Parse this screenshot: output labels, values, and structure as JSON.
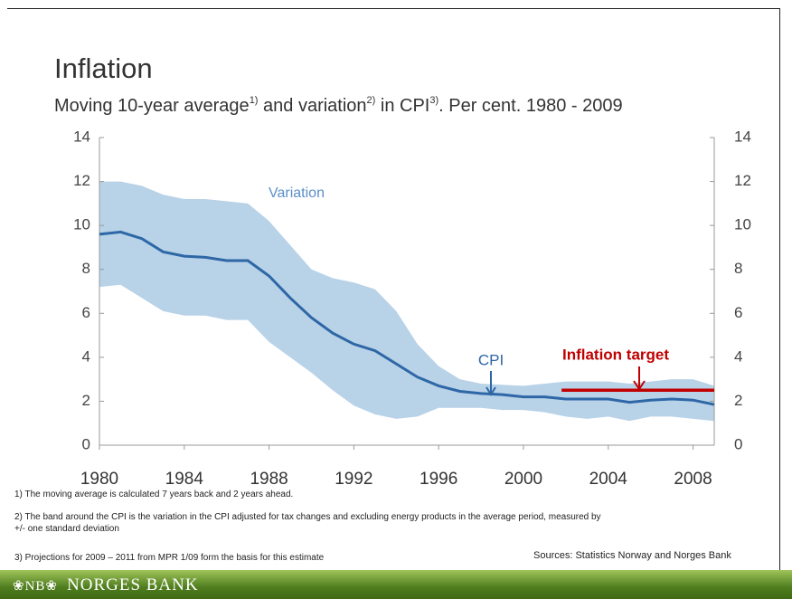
{
  "chart_data": {
    "type": "line",
    "title": "Inflation",
    "subtitle_parts": [
      "Moving 10-year average",
      "1)",
      " and variation",
      "2)",
      " in CPI",
      "3)",
      ". Per cent. 1980 - 2009"
    ],
    "x": [
      1980,
      1981,
      1982,
      1983,
      1984,
      1985,
      1986,
      1987,
      1988,
      1989,
      1990,
      1991,
      1992,
      1993,
      1994,
      1995,
      1996,
      1997,
      1998,
      1999,
      2000,
      2001,
      2002,
      2003,
      2004,
      2005,
      2006,
      2007,
      2008,
      2009
    ],
    "xlim": [
      1980,
      2009
    ],
    "xticks": [
      1980,
      1984,
      1988,
      1992,
      1996,
      2000,
      2004,
      2008
    ],
    "ylim": [
      0,
      14
    ],
    "yticks": [
      0,
      2,
      4,
      6,
      8,
      10,
      12,
      14
    ],
    "y2lim": [
      0,
      14
    ],
    "y2ticks": [
      0,
      2,
      4,
      6,
      8,
      10,
      12,
      14
    ],
    "band": {
      "name": "Variation",
      "color": "#b8d2e8",
      "label_color": "#5b8fc8",
      "upper": [
        12,
        12,
        11.8,
        11.4,
        11.2,
        11.2,
        11.1,
        11,
        10.2,
        9.1,
        8,
        7.6,
        7.4,
        7.1,
        6.1,
        4.6,
        3.6,
        3,
        2.8,
        2.75,
        2.7,
        2.8,
        2.9,
        2.9,
        2.9,
        2.8,
        2.9,
        3,
        3,
        2.7
      ],
      "lower": [
        7.2,
        7.3,
        6.7,
        6.1,
        5.9,
        5.9,
        5.7,
        5.7,
        4.7,
        4,
        3.3,
        2.5,
        1.8,
        1.4,
        1.2,
        1.3,
        1.7,
        1.7,
        1.7,
        1.6,
        1.6,
        1.5,
        1.3,
        1.2,
        1.3,
        1.1,
        1.3,
        1.3,
        1.2,
        1.1
      ]
    },
    "series": [
      {
        "name": "CPI",
        "color": "#2e67a6",
        "values": [
          9.6,
          9.7,
          9.4,
          8.8,
          8.6,
          8.55,
          8.4,
          8.4,
          7.7,
          6.7,
          5.8,
          5.1,
          4.6,
          4.3,
          3.7,
          3.1,
          2.7,
          2.45,
          2.35,
          2.3,
          2.2,
          2.2,
          2.1,
          2.1,
          2.1,
          1.95,
          2.05,
          2.1,
          2.05,
          1.85
        ]
      }
    ],
    "target": {
      "name": "Inflation target",
      "color": "#c00000",
      "x": [
        2001.8,
        2009
      ],
      "values": [
        2.5,
        2.5
      ]
    }
  },
  "notes": [
    "1)  The moving average is calculated 7 years back and 2 years ahead.",
    "2)  The band around the CPI is the variation in the CPI adjusted for tax changes and excluding energy products in the  average period, measured by +/- one standard deviation",
    "3)  Projections for 2009 – 2011 from  MPR 1/09 form  the basis for this estimate"
  ],
  "sources": "Sources: Statistics Norway and Norges Bank",
  "footer": {
    "logo": "❀NB❀",
    "bank": "NORGES BANK"
  }
}
